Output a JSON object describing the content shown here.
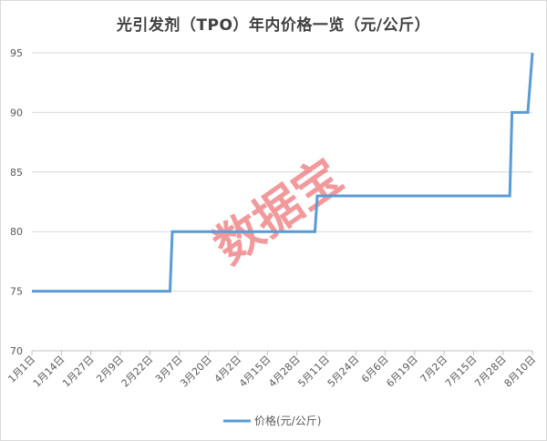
{
  "title": "光引发剂（TPO）年内价格一览（元/公斤）",
  "watermark": "数据宝",
  "chart_data": {
    "type": "line",
    "step": true,
    "title": "光引发剂（TPO）年内价格一览（元/公斤）",
    "categories": [
      "1月1日",
      "1月14日",
      "1月27日",
      "2月9日",
      "2月22日",
      "3月7日",
      "3月20日",
      "4月2日",
      "4月15日",
      "4月28日",
      "5月11日",
      "5月24日",
      "6月6日",
      "6月19日",
      "7月2日",
      "7月15日",
      "7月28日",
      "8月10日"
    ],
    "ylim": [
      70,
      95
    ],
    "yticks": [
      70,
      75,
      80,
      85,
      90,
      95
    ],
    "grid": true,
    "legend_position": "bottom",
    "color": "#5b9bd5",
    "series": [
      {
        "name": "价格(元/公斤)",
        "points": [
          {
            "x": "1月1日",
            "y": 75
          },
          {
            "x": "3月3日",
            "y": 75
          },
          {
            "x": "3月4日",
            "y": 80
          },
          {
            "x": "5月6日",
            "y": 80
          },
          {
            "x": "5月7日",
            "y": 83
          },
          {
            "x": "7月31日",
            "y": 83
          },
          {
            "x": "8月1日",
            "y": 90
          },
          {
            "x": "8月8日",
            "y": 90
          },
          {
            "x": "8月10日",
            "y": 95
          }
        ]
      }
    ]
  }
}
